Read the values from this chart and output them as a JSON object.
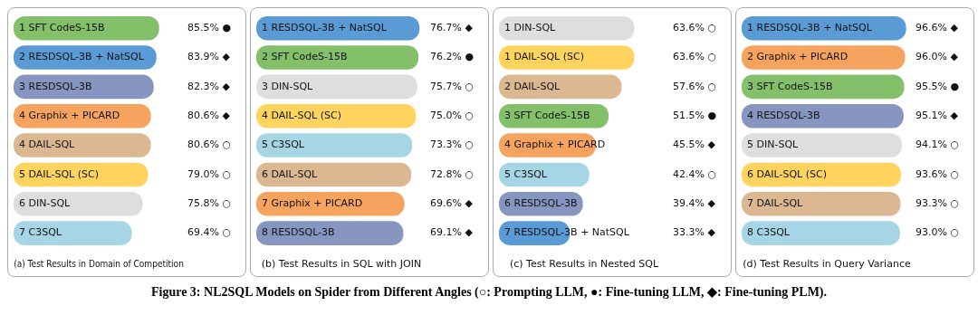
{
  "chart_data": [
    {
      "type": "bar",
      "orientation": "horizontal",
      "title": "Figure 3: NL2SQL Models on Spider from Different Angles (○: Prompting LLM, ●: Fine-tuning LLM, ◆: Fine-tuning PLM).",
      "xlabel": "(a) Test Results in Domain of Competition",
      "categories": [
        "1 SFT CodeS-15B",
        "2 RESDSQL-3B + NatSQL",
        "3 RESDSQL-3B",
        "4 Graphix + PICARD",
        "4 DAIL-SQL",
        "5 DAIL-SQL (SC)",
        "6 DIN-SQL",
        "7 C3SQL"
      ],
      "values": [
        85.5,
        83.9,
        82.3,
        80.6,
        80.6,
        79.0,
        75.8,
        69.4
      ],
      "colors": [
        "#84c06a",
        "#5b9bd5",
        "#8796c0",
        "#f5a35e",
        "#dcb892",
        "#ffd45e",
        "#dedede",
        "#a6d5e6"
      ],
      "value_labels": [
        "85.5% ●",
        "83.9% ◆",
        "82.3% ◆",
        "80.6% ◆",
        "80.6% ○",
        "79.0% ○",
        "75.8% ○",
        "69.4% ○"
      ],
      "legend": false,
      "grid": false
    },
    {
      "type": "bar",
      "orientation": "horizontal",
      "xlabel": "(b) Test Results in SQL with JOIN",
      "categories": [
        "1 RESDSQL-3B + NatSQL",
        "2 SFT CodeS-15B",
        "3 DIN-SQL",
        "4 DAIL-SQL (SC)",
        "5 C3SQL",
        "6 DAIL-SQL",
        "7 Graphix + PICARD",
        "8 RESDSQL-3B"
      ],
      "values": [
        76.7,
        76.2,
        75.7,
        75.0,
        73.3,
        72.8,
        69.6,
        69.1
      ],
      "colors": [
        "#5b9bd5",
        "#84c06a",
        "#dedede",
        "#ffd45e",
        "#a6d5e6",
        "#dcb892",
        "#f5a35e",
        "#8796c0"
      ],
      "value_labels": [
        "76.7% ◆",
        "76.2% ●",
        "75.7% ○",
        "75.0% ○",
        "73.3% ○",
        "72.8% ○",
        "69.6% ◆",
        "69.1% ◆"
      ],
      "legend": false,
      "grid": false
    },
    {
      "type": "bar",
      "orientation": "horizontal",
      "xlabel": "(c) Test Results in Nested SQL",
      "categories": [
        "1 DIN-SQL",
        "1 DAIL-SQL (SC)",
        "2 DAIL-SQL",
        "3 SFT CodeS-15B",
        "4 Graphix + PICARD",
        "5 C3SQL",
        "6 RESDSQL-3B",
        "7 RESDSQL-3B + NatSQL"
      ],
      "values": [
        63.6,
        63.6,
        57.6,
        51.5,
        45.5,
        42.4,
        39.4,
        33.3
      ],
      "colors": [
        "#dedede",
        "#ffd45e",
        "#dcb892",
        "#84c06a",
        "#f5a35e",
        "#a6d5e6",
        "#8796c0",
        "#5b9bd5"
      ],
      "value_labels": [
        "63.6% ○",
        "63.6% ○",
        "57.6% ○",
        "51.5% ●",
        "45.5% ◆",
        "42.4% ○",
        "39.4% ◆",
        "33.3% ◆"
      ],
      "legend": false,
      "grid": false
    },
    {
      "type": "bar",
      "orientation": "horizontal",
      "xlabel": "(d) Test Results in Query Variance",
      "categories": [
        "1 RESDSQL-3B + NatSQL",
        "2 Graphix + PICARD",
        "3 SFT CodeS-15B",
        "4 RESDSQL-3B",
        "5 DIN-SQL",
        "6 DAIL-SQL (SC)",
        "7 DAIL-SQL",
        "8 C3SQL"
      ],
      "values": [
        96.6,
        96.0,
        95.5,
        95.1,
        94.1,
        93.6,
        93.3,
        93.0
      ],
      "colors": [
        "#5b9bd5",
        "#f5a35e",
        "#84c06a",
        "#8796c0",
        "#dedede",
        "#ffd45e",
        "#dcb892",
        "#a6d5e6"
      ],
      "value_labels": [
        "96.6% ◆",
        "96.0% ◆",
        "95.5% ●",
        "95.1% ◆",
        "94.1% ○",
        "93.6% ○",
        "93.3% ○",
        "93.0% ○"
      ],
      "legend": false,
      "grid": false
    }
  ]
}
